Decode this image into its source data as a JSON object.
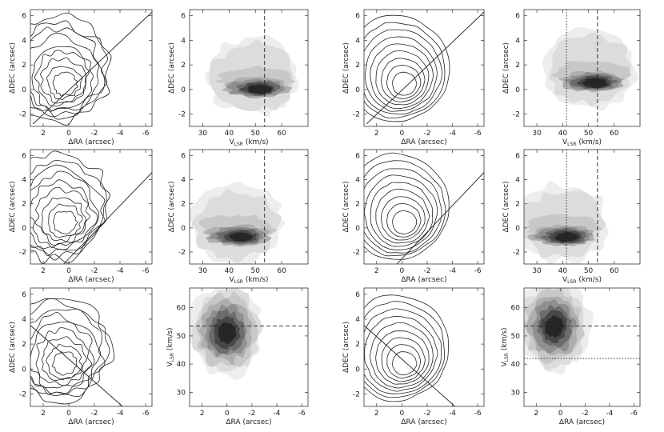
{
  "figure": {
    "labels": {
      "dec": "ΔDEC (arcsec)",
      "ra": "ΔRA (arcsec)",
      "vlsr": "V",
      "vlsr_sub": "LSR",
      "vlsr_unit": " (km/s)"
    }
  },
  "chart_data": [
    {
      "type": "contour",
      "kind": "map",
      "row": 0,
      "col": 0,
      "model": false,
      "line": "up",
      "xlabel": "ΔRA (arcsec)",
      "ylabel": "ΔDEC (arcsec)",
      "xlim": [
        3,
        -6.5
      ],
      "ylim": [
        -3,
        6.5
      ],
      "xticks": [
        2,
        0,
        -2,
        -4,
        -6
      ],
      "yticks": [
        -2,
        0,
        2,
        4,
        6
      ],
      "center": [
        0.3,
        0.3
      ],
      "n_levels": 9
    },
    {
      "type": "heatmap",
      "kind": "pv_v",
      "row": 0,
      "col": 1,
      "xlabel": "VLSR (km/s)",
      "ylabel": "ΔDEC (arcsec)",
      "xlim": [
        25,
        70
      ],
      "ylim": [
        -3,
        6.5
      ],
      "xticks": [
        30,
        40,
        50,
        60
      ],
      "yticks": [
        -2,
        0,
        2,
        4,
        6
      ],
      "dashed_velocity": 53.5,
      "peak": [
        52,
        0
      ]
    },
    {
      "type": "contour",
      "kind": "map",
      "row": 0,
      "col": 2,
      "model": true,
      "line": "up",
      "xlabel": "ΔRA (arcsec)",
      "ylabel": "ΔDEC (arcsec)",
      "xlim": [
        3,
        -6.5
      ],
      "ylim": [
        -3,
        6.5
      ],
      "xticks": [
        2,
        0,
        -2,
        -4,
        -6
      ],
      "yticks": [
        -2,
        0,
        2,
        4,
        6
      ],
      "center": [
        -0.2,
        0.3
      ],
      "n_levels": 9
    },
    {
      "type": "heatmap",
      "kind": "pv_v",
      "row": 0,
      "col": 3,
      "xlabel": "VLSR (km/s)",
      "ylabel": "ΔDEC (arcsec)",
      "xlim": [
        25,
        70
      ],
      "ylim": [
        -3,
        6.5
      ],
      "xticks": [
        30,
        40,
        50,
        60
      ],
      "yticks": [
        -2,
        0,
        2,
        4,
        6
      ],
      "dashed_velocity": 53.5,
      "dotted_velocity": 41.5,
      "peak": [
        53,
        0.5
      ]
    },
    {
      "type": "contour",
      "kind": "map",
      "row": 1,
      "col": 0,
      "model": false,
      "line": "steep",
      "xlabel": "ΔRA (arcsec)",
      "ylabel": "ΔDEC (arcsec)",
      "xlim": [
        3,
        -6.5
      ],
      "ylim": [
        -3,
        6.5
      ],
      "xticks": [
        2,
        0,
        -2,
        -4,
        -6
      ],
      "yticks": [
        -2,
        0,
        2,
        4,
        6
      ],
      "center": [
        0.3,
        0.3
      ],
      "n_levels": 9
    },
    {
      "type": "heatmap",
      "kind": "pv_v",
      "row": 1,
      "col": 1,
      "xlabel": "VLSR (km/s)",
      "ylabel": "ΔDEC (arcsec)",
      "xlim": [
        25,
        70
      ],
      "ylim": [
        -3,
        6.5
      ],
      "xticks": [
        30,
        40,
        50,
        60
      ],
      "yticks": [
        -2,
        0,
        2,
        4,
        6
      ],
      "dashed_velocity": 53.5,
      "peak": [
        45,
        -0.8
      ]
    },
    {
      "type": "contour",
      "kind": "map",
      "row": 1,
      "col": 2,
      "model": true,
      "line": "steep",
      "xlabel": "ΔRA (arcsec)",
      "ylabel": "ΔDEC (arcsec)",
      "xlim": [
        3,
        -6.5
      ],
      "ylim": [
        -3,
        6.5
      ],
      "xticks": [
        2,
        0,
        -2,
        -4,
        -6
      ],
      "yticks": [
        -2,
        0,
        2,
        4,
        6
      ],
      "center": [
        -0.2,
        0.3
      ],
      "n_levels": 9
    },
    {
      "type": "heatmap",
      "kind": "pv_v",
      "row": 1,
      "col": 3,
      "xlabel": "VLSR (km/s)",
      "ylabel": "ΔDEC (arcsec)",
      "xlim": [
        25,
        70
      ],
      "ylim": [
        -3,
        6.5
      ],
      "xticks": [
        30,
        40,
        50,
        60
      ],
      "yticks": [
        -2,
        0,
        2,
        4,
        6
      ],
      "dashed_velocity": 53.5,
      "dotted_velocity": 41.5,
      "peak": [
        42,
        -0.8
      ]
    },
    {
      "type": "contour",
      "kind": "map",
      "row": 2,
      "col": 0,
      "model": false,
      "line": "down",
      "xlabel": "ΔRA (arcsec)",
      "ylabel": "ΔDEC (arcsec)",
      "xlim": [
        3,
        -6.5
      ],
      "ylim": [
        -3,
        6.5
      ],
      "xticks": [
        2,
        0,
        -2,
        -4,
        -6
      ],
      "yticks": [
        -2,
        0,
        2,
        4,
        6
      ],
      "center": [
        0.3,
        0.3
      ],
      "n_levels": 9
    },
    {
      "type": "heatmap",
      "kind": "pv_ra",
      "row": 2,
      "col": 1,
      "xlabel": "ΔRA (arcsec)",
      "ylabel": "VLSR (km/s)",
      "xlim": [
        3,
        -6.5
      ],
      "ylim": [
        25,
        67
      ],
      "xticks": [
        2,
        0,
        -2,
        -4,
        -6
      ],
      "yticks": [
        30,
        40,
        50,
        60
      ],
      "dashed_velocity": 53.5,
      "peak": [
        0,
        51
      ]
    },
    {
      "type": "contour",
      "kind": "map",
      "row": 2,
      "col": 2,
      "model": true,
      "line": "down",
      "xlabel": "ΔRA (arcsec)",
      "ylabel": "ΔDEC (arcsec)",
      "xlim": [
        3,
        -6.5
      ],
      "ylim": [
        -3,
        6.5
      ],
      "xticks": [
        2,
        0,
        -2,
        -4,
        -6
      ],
      "yticks": [
        -2,
        0,
        2,
        4,
        6
      ],
      "center": [
        -0.2,
        0.3
      ],
      "n_levels": 9
    },
    {
      "type": "heatmap",
      "kind": "pv_ra",
      "row": 2,
      "col": 3,
      "xlabel": "ΔRA (arcsec)",
      "ylabel": "VLSR (km/s)",
      "xlim": [
        3,
        -6.5
      ],
      "ylim": [
        25,
        67
      ],
      "xticks": [
        2,
        0,
        -2,
        -4,
        -6
      ],
      "yticks": [
        30,
        40,
        50,
        60
      ],
      "dashed_velocity": 53.5,
      "dotted_velocity": 42,
      "peak": [
        0.5,
        53
      ]
    }
  ]
}
